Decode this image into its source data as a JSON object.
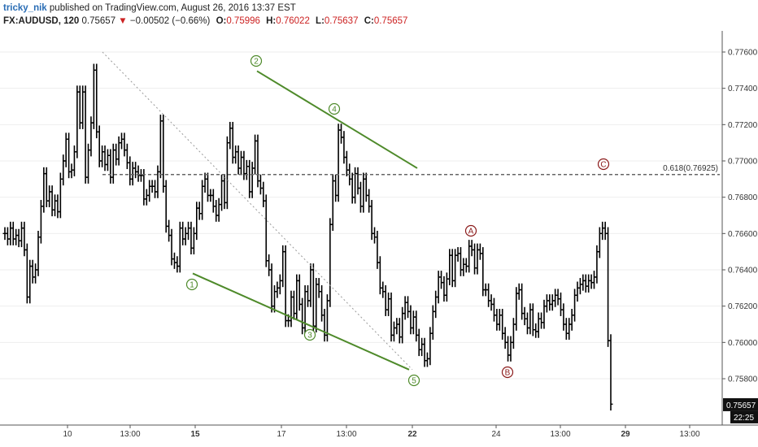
{
  "header": {
    "author": "tricky_nik",
    "published": "published on TradingView.com, August 26, 2016 13:37 EST",
    "symbol": "FX:AUDUSD, 120",
    "last": "0.75657",
    "change_arrow": "▼",
    "change": "−0.00502 (−0.66%)",
    "open_label": "O:",
    "open": "0.75996",
    "high_label": "H:",
    "high": "0.76022",
    "low_label": "L:",
    "low": "0.75637",
    "close_label": "C:",
    "close": "0.75657"
  },
  "colors": {
    "wave_line": "#4e8a2a",
    "wave_green": "#4e8a2a",
    "wave_red": "#8b1a1a",
    "bars": "#000000",
    "grid": "#eeeeee"
  },
  "chart_data": {
    "type": "ohlc",
    "title": "FX:AUDUSD, 120",
    "ylim": [
      0.7566,
      0.7763
    ],
    "price_ticks": [
      "0.77600",
      "0.77400",
      "0.77200",
      "0.77000",
      "0.76800",
      "0.76600",
      "0.76400",
      "0.76200",
      "0.76000",
      "0.75800"
    ],
    "time_ticks": [
      "10",
      "13:00",
      "15",
      "17",
      "13:00",
      "22",
      "24",
      "13:00",
      "29",
      "13:00"
    ],
    "last_price": "0.75657",
    "countdown": "22:25",
    "fib_level": "0.618(0.76925)",
    "fib_value": 0.76925,
    "series": [
      {
        "values": [
          0.766,
          0.7657,
          0.7663,
          0.7657,
          0.7659,
          0.7656,
          0.7663,
          0.7651,
          0.7625,
          0.7642,
          0.7636,
          0.764,
          0.7658,
          0.7675,
          0.7693,
          0.7678,
          0.7683,
          0.7673,
          0.7678,
          0.7672,
          0.769,
          0.77,
          0.7712,
          0.7694,
          0.7695,
          0.7705,
          0.7738,
          0.7721,
          0.7738,
          0.7691,
          0.7706,
          0.7721,
          0.775,
          0.7716,
          0.77,
          0.7705,
          0.7698,
          0.7703,
          0.7691,
          0.7706,
          0.7701,
          0.771,
          0.7712,
          0.7706,
          0.7699,
          0.769,
          0.7696,
          0.7694,
          0.7692,
          0.7692,
          0.7679,
          0.7681,
          0.7686,
          0.7686,
          0.7683,
          0.7694,
          0.7722,
          0.7686,
          0.7664,
          0.7659,
          0.7646,
          0.7644,
          0.7642,
          0.7663,
          0.7657,
          0.766,
          0.7663,
          0.7652,
          0.766,
          0.7674,
          0.7671,
          0.7686,
          0.769,
          0.7681,
          0.7681,
          0.7675,
          0.767,
          0.7676,
          0.7689,
          0.7677,
          0.771,
          0.7718,
          0.7702,
          0.7705,
          0.7696,
          0.7702,
          0.7693,
          0.7697,
          0.7683,
          0.7696,
          0.7711,
          0.7689,
          0.7685,
          0.7678,
          0.7645,
          0.764,
          0.762,
          0.7628,
          0.763,
          0.7634,
          0.765,
          0.7612,
          0.7612,
          0.7625,
          0.7616,
          0.7634,
          0.7621,
          0.7608,
          0.7628,
          0.7623,
          0.764,
          0.7609,
          0.7632,
          0.7628,
          0.7615,
          0.7604,
          0.7623,
          0.7665,
          0.7689,
          0.7681,
          0.7717,
          0.7713,
          0.7702,
          0.7695,
          0.769,
          0.768,
          0.7693,
          0.7685,
          0.7675,
          0.769,
          0.7681,
          0.7675,
          0.766,
          0.7658,
          0.7644,
          0.763,
          0.7628,
          0.7618,
          0.7624,
          0.7604,
          0.7608,
          0.761,
          0.7603,
          0.7616,
          0.7622,
          0.7617,
          0.7608,
          0.7614,
          0.7604,
          0.7596,
          0.7599,
          0.759,
          0.7591,
          0.7605,
          0.7617,
          0.7625,
          0.7636,
          0.7633,
          0.7626,
          0.7635,
          0.7648,
          0.7634,
          0.7648,
          0.7649,
          0.764,
          0.7643,
          0.7642,
          0.7653,
          0.7651,
          0.7641,
          0.7651,
          0.7649,
          0.7629,
          0.7629,
          0.7623,
          0.7621,
          0.7615,
          0.761,
          0.7615,
          0.7605,
          0.76,
          0.7593,
          0.76,
          0.761,
          0.7627,
          0.7629,
          0.7616,
          0.7613,
          0.7608,
          0.7618,
          0.7607,
          0.7606,
          0.7613,
          0.7611,
          0.762,
          0.7623,
          0.7621,
          0.7623,
          0.7626,
          0.7624,
          0.7618,
          0.761,
          0.7605,
          0.761,
          0.7615,
          0.7626,
          0.763,
          0.7632,
          0.7634,
          0.7631,
          0.7634,
          0.7633,
          0.7636,
          0.765,
          0.766,
          0.7663,
          0.766,
          0.7601,
          0.7566
        ],
        "name": ""
      }
    ],
    "wave_labels": [
      {
        "text": "1",
        "color": "green",
        "price": 0.76337,
        "bar": 33
      },
      {
        "text": "2",
        "color": "green",
        "price": 0.77518,
        "bar": 44
      },
      {
        "text": "3",
        "color": "green",
        "price": 0.76084,
        "bar": 54
      },
      {
        "text": "4",
        "color": "green",
        "price": 0.77292,
        "bar": 58
      },
      {
        "text": "5",
        "color": "green",
        "price": 0.7578,
        "bar": 73
      },
      {
        "text": "A",
        "color": "red",
        "price": 0.76566,
        "bar": 83
      },
      {
        "text": "B",
        "color": "red",
        "price": 0.75845,
        "bar": 89
      },
      {
        "text": "C",
        "color": "red",
        "price": 0.76944,
        "bar": 106
      }
    ]
  }
}
